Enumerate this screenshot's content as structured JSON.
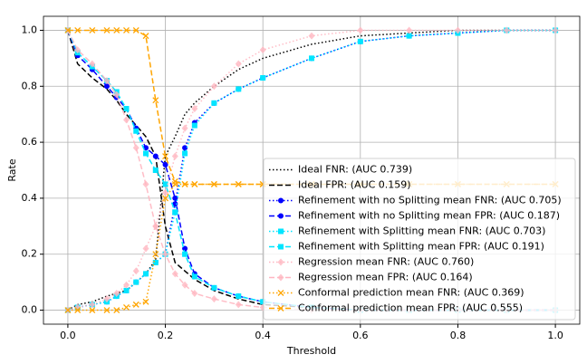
{
  "chart_data": {
    "type": "line",
    "xlabel": "Threshold",
    "ylabel": "Rate",
    "x": [
      0,
      0.02,
      0.05,
      0.08,
      0.1,
      0.12,
      0.14,
      0.16,
      0.18,
      0.2,
      0.22,
      0.24,
      0.26,
      0.3,
      0.35,
      0.4,
      0.5,
      0.6,
      0.7,
      0.8,
      0.9,
      1.0
    ],
    "xlim": [
      -0.05,
      1.05
    ],
    "ylim": [
      -0.05,
      1.05
    ],
    "xticks": [
      {
        "value": 0,
        "label": "0.0"
      },
      0.2,
      0.4,
      0.6,
      0.8,
      {
        "value": 1,
        "label": "1.0"
      }
    ],
    "yticks": [
      {
        "value": 0,
        "label": "0.0"
      },
      0.2,
      0.4,
      0.6,
      0.8,
      {
        "value": 1,
        "label": "1.0"
      }
    ],
    "grid": true,
    "legend": "lower right",
    "series": [
      {
        "name": "Ideal FNR: (AUC 0.739)",
        "color": "#000000",
        "linestyle": "dotted",
        "marker": "none",
        "values": [
          0,
          0.02,
          0.03,
          0.05,
          0.06,
          0.07,
          0.1,
          0.13,
          0.18,
          0.55,
          0.62,
          0.7,
          0.74,
          0.8,
          0.86,
          0.9,
          0.95,
          0.98,
          0.99,
          1,
          1,
          1
        ]
      },
      {
        "name": "Ideal FPR: (AUC 0.159)",
        "color": "#000000",
        "linestyle": "dashed",
        "marker": "none",
        "values": [
          1,
          0.88,
          0.83,
          0.79,
          0.75,
          0.7,
          0.66,
          0.62,
          0.55,
          0.3,
          0.17,
          0.14,
          0.11,
          0.07,
          0.04,
          0.02,
          0.01,
          0,
          0,
          0,
          0,
          0
        ]
      },
      {
        "name": "Refinement with no Splitting mean FNR: (AUC 0.705)",
        "color": "#0000ff",
        "linestyle": "dotted",
        "marker": "circle",
        "values": [
          0,
          0.01,
          0.02,
          0.03,
          0.05,
          0.07,
          0.1,
          0.13,
          0.17,
          0.2,
          0.38,
          0.58,
          0.67,
          0.74,
          0.79,
          0.83,
          0.9,
          0.96,
          0.98,
          0.99,
          1,
          1
        ]
      },
      {
        "name": "Refinement with no Splitting mean FPR: (AUC 0.187)",
        "color": "#0000ff",
        "linestyle": "dashed",
        "marker": "circle",
        "values": [
          1,
          0.91,
          0.86,
          0.8,
          0.76,
          0.72,
          0.65,
          0.58,
          0.55,
          0.52,
          0.4,
          0.22,
          0.13,
          0.08,
          0.05,
          0.03,
          0.01,
          0,
          0,
          0,
          0,
          0
        ]
      },
      {
        "name": "Refinement with Splitting mean FNR: (AUC 0.703)",
        "color": "#00e5ff",
        "linestyle": "dotted",
        "marker": "square",
        "values": [
          0,
          0.01,
          0.02,
          0.03,
          0.05,
          0.07,
          0.1,
          0.13,
          0.17,
          0.2,
          0.35,
          0.56,
          0.66,
          0.74,
          0.79,
          0.83,
          0.9,
          0.96,
          0.98,
          0.99,
          1,
          1
        ]
      },
      {
        "name": "Refinement with Splitting mean FPR: (AUC 0.191)",
        "color": "#00e5ff",
        "linestyle": "dashed",
        "marker": "square",
        "values": [
          1,
          0.92,
          0.87,
          0.82,
          0.78,
          0.72,
          0.64,
          0.56,
          0.5,
          0.45,
          0.35,
          0.2,
          0.12,
          0.08,
          0.05,
          0.03,
          0.01,
          0,
          0,
          0,
          0,
          0
        ]
      },
      {
        "name": "Regression mean FNR: (AUC 0.760)",
        "color": "#ffb6c1",
        "linestyle": "dotted",
        "marker": "diamond",
        "values": [
          0,
          0.01,
          0.02,
          0.04,
          0.06,
          0.09,
          0.14,
          0.22,
          0.3,
          0.42,
          0.55,
          0.65,
          0.72,
          0.8,
          0.88,
          0.93,
          0.98,
          1,
          1,
          1,
          1,
          1
        ]
      },
      {
        "name": "Regression mean FPR: (AUC 0.164)",
        "color": "#ffb6c1",
        "linestyle": "dashed",
        "marker": "diamond",
        "values": [
          1,
          0.93,
          0.88,
          0.82,
          0.77,
          0.68,
          0.58,
          0.45,
          0.3,
          0.2,
          0.13,
          0.09,
          0.06,
          0.04,
          0.02,
          0.01,
          0,
          0,
          0,
          0,
          0,
          0
        ]
      },
      {
        "name": "Conformal prediction mean FNR: (AUC 0.369)",
        "color": "#ffa500",
        "linestyle": "dotted",
        "marker": "x",
        "values": [
          0,
          0,
          0,
          0,
          0,
          0.01,
          0.02,
          0.03,
          0.2,
          0.4,
          0.45,
          0.45,
          0.45,
          0.45,
          0.45,
          0.45,
          0.45,
          0.45,
          0.45,
          0.45,
          0.45,
          0.45
        ]
      },
      {
        "name": "Conformal prediction mean FPR: (AUC 0.555)",
        "color": "#ffa500",
        "linestyle": "dashed",
        "marker": "x",
        "values": [
          1,
          1,
          1,
          1,
          1,
          1,
          1,
          0.98,
          0.75,
          0.55,
          0.46,
          0.45,
          0.45,
          0.45,
          0.45,
          0.45,
          0.45,
          0.45,
          0.45,
          0.45,
          0.45,
          0.45
        ]
      }
    ]
  }
}
